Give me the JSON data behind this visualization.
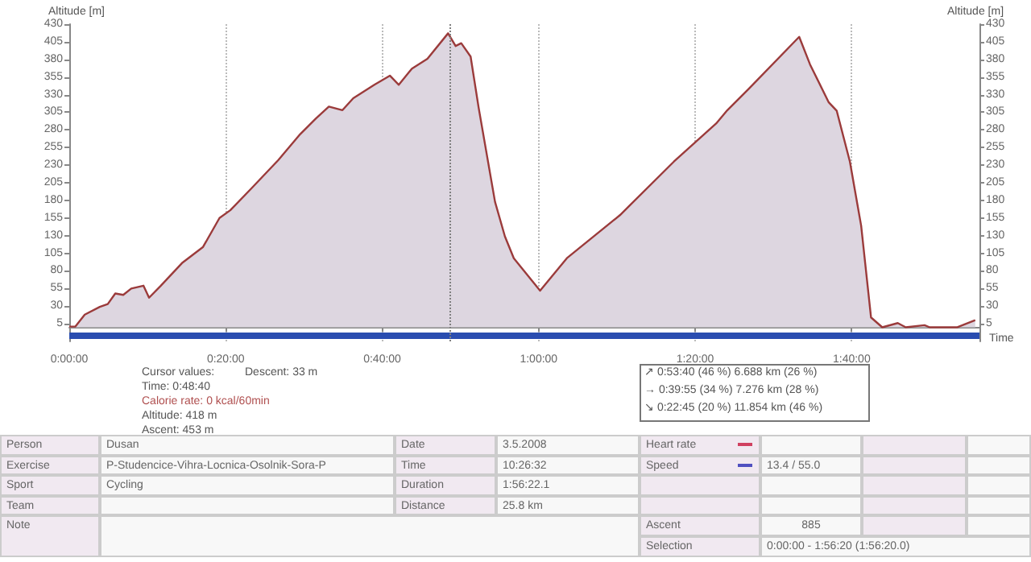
{
  "chart_data": {
    "type": "area",
    "xlabel": "Time",
    "ylabel": "Altitude [m]",
    "y2label": "Altitude [m]",
    "x": [
      0,
      0.013,
      0.033,
      0.065,
      0.082,
      0.098,
      0.115,
      0.132,
      0.158,
      0.17,
      0.195,
      0.24,
      0.285,
      0.32,
      0.343,
      0.388,
      0.445,
      0.492,
      0.525,
      0.553,
      0.582,
      0.605,
      0.65,
      0.683,
      0.702,
      0.73,
      0.763,
      0.807,
      0.823,
      0.835,
      0.855,
      0.872,
      0.907,
      0.928,
      0.947,
      1.003,
      1.06,
      1.173,
      1.288,
      1.378,
      1.402,
      1.447,
      1.555,
      1.578,
      1.618,
      1.635,
      1.663,
      1.687,
      1.708,
      1.732,
      1.765,
      1.782,
      1.822,
      1.833,
      1.892,
      1.93
    ],
    "series": [
      {
        "color": "#9b3b3b",
        "values": [
          1,
          1,
          18,
          29,
          33,
          48,
          46,
          55,
          59,
          42,
          59,
          91,
          114,
          155,
          166,
          197,
          237,
          274,
          296,
          313,
          308,
          325,
          344,
          357,
          344,
          367,
          381,
          417,
          399,
          403,
          384,
          312,
          178,
          129,
          98,
          52,
          98,
          159,
          235,
          289,
          308,
          338,
          412,
          373,
          319,
          307,
          235,
          144,
          14,
          0,
          6,
          0,
          3,
          0,
          0,
          10
        ]
      },
      {
        "type": "line",
        "color": "#2a4db0",
        "x": [
          0,
          1.939
        ],
        "values": [
          -12,
          -12
        ]
      }
    ],
    "xlim": [
      0,
      1.939
    ],
    "xticks": [
      {
        "value": 0,
        "label": "0:00:00"
      },
      {
        "value": 0.3333,
        "label": "0:20:00"
      },
      {
        "value": 0.6667,
        "label": "0:40:00"
      },
      {
        "value": 1,
        "label": "1:00:00"
      },
      {
        "value": 1.3333,
        "label": "1:20:00"
      },
      {
        "value": 1.6667,
        "label": "1:40:00"
      }
    ],
    "ylim": [
      -20,
      430
    ],
    "yticks": [
      5,
      30,
      55,
      80,
      105,
      130,
      155,
      180,
      205,
      230,
      255,
      280,
      305,
      330,
      355,
      380,
      405,
      430
    ],
    "y2lim": [
      -20,
      430
    ],
    "y2ticks": [
      5,
      30,
      55,
      80,
      105,
      130,
      155,
      180,
      205,
      230,
      255,
      280,
      305,
      330,
      355,
      380,
      405,
      430
    ],
    "grid": "x",
    "ref_lines": [
      {
        "axis": "x",
        "value": 0.811,
        "line_style": "dotted",
        "color": "#808080"
      }
    ],
    "annotations": [
      "Cursor values:",
      "Time: 0:48:40",
      "Calorie rate: 0 kcal/60min",
      "Altitude: 418 m",
      "Ascent: 453 m",
      "Descent: 33 m",
      "↗ 0:53:40 (46 %) 6.688 km (26 %)",
      "→ 0:39:55 (34 %) 7.276 km (28 %)",
      "↘ 0:22:45 (20 %) 11.854 km (46 %)",
      "Person",
      "Dusan",
      "Date",
      "3.5.2008",
      "Heart rate",
      "Exercise",
      "P-Studencice-Vihra-Locnica-Osolnik-Sora-P",
      "Time",
      "10:26:32",
      "Speed",
      "13.4 / 55.0",
      "Sport",
      "Cycling",
      "Duration",
      "1:56:22.1",
      "Team",
      "Distance",
      "25.8 km",
      "Note",
      "Ascent",
      "885",
      "Selection",
      "0:00:00 - 1:56:20 (1:56:20.0)"
    ]
  }
}
